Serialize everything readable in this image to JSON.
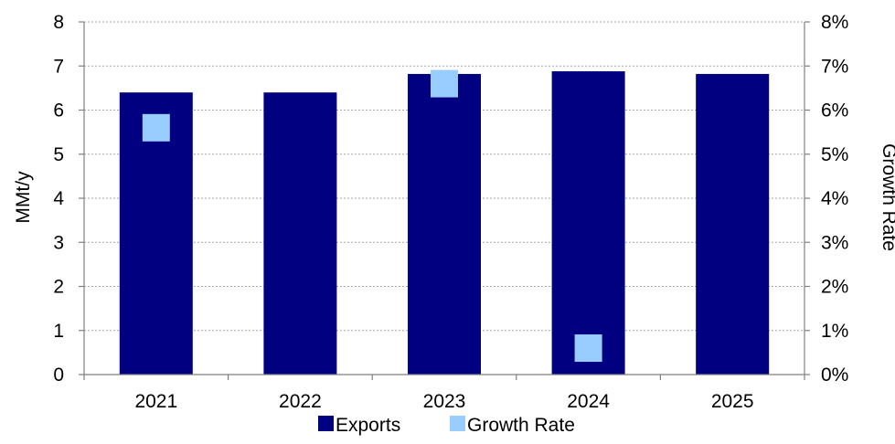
{
  "chart_data": {
    "type": "bar",
    "categories": [
      "2021",
      "2022",
      "2023",
      "2024",
      "2025"
    ],
    "series": [
      {
        "name": "Exports",
        "kind": "bar",
        "axis": "left",
        "color": "#000080",
        "values": [
          6.4,
          6.4,
          6.82,
          6.88,
          6.82
        ]
      },
      {
        "name": "Growth Rate",
        "kind": "marker",
        "axis": "right",
        "color": "#99ccff",
        "values": [
          0.056,
          null,
          0.066,
          0.006,
          null
        ]
      }
    ],
    "ylabel": "MMt/y",
    "ylim": [
      0,
      8
    ],
    "y_ticks": [
      "0",
      "1",
      "2",
      "3",
      "4",
      "5",
      "6",
      "7",
      "8"
    ],
    "y2label": "Growth Rate",
    "y2lim": [
      0,
      0.08
    ],
    "y2_ticks": [
      "0%",
      "1%",
      "2%",
      "3%",
      "4%",
      "5%",
      "6%",
      "7%",
      "8%"
    ],
    "grid": true,
    "legend": "bottom"
  }
}
